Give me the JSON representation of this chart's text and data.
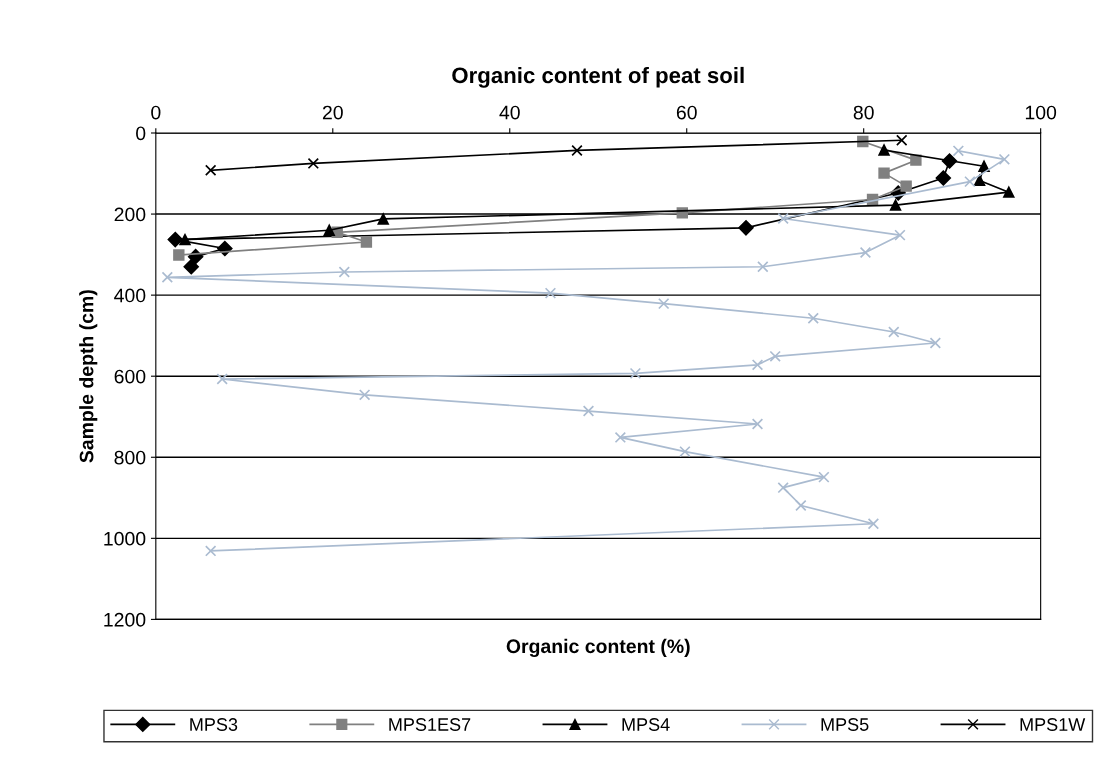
{
  "chart_data": {
    "type": "line",
    "title": "Organic content of peat soil",
    "xlabel": "Organic content (%)",
    "ylabel": "Sample depth (cm)",
    "xlim": [
      0,
      100
    ],
    "xticks": [
      0,
      20,
      40,
      60,
      80,
      100
    ],
    "ylim": [
      1200,
      0
    ],
    "yticks": [
      0,
      200,
      400,
      600,
      800,
      1000,
      1200
    ],
    "grid": "y",
    "legend": "bottom",
    "line_style": "solid",
    "series": [
      {
        "name": "MPS3",
        "color": "#000000",
        "marker": "diamond",
        "x": [
          89.7,
          89.0,
          83.9,
          66.7,
          2.2,
          7.8,
          4.5,
          4.0
        ],
        "values": [
          69,
          111,
          148,
          234,
          263,
          285,
          305,
          330
        ]
      },
      {
        "name": "MPS1ES7",
        "color": "#808080",
        "marker": "square",
        "x": [
          79.9,
          85.9,
          82.3,
          84.8,
          81.0,
          59.5,
          20.5,
          23.8,
          2.6
        ],
        "values": [
          21,
          67,
          99,
          131,
          164,
          197,
          245,
          269,
          301
        ]
      },
      {
        "name": "MPS4",
        "color": "#000000",
        "marker": "triangle",
        "x": [
          82.3,
          93.6,
          93.1,
          96.4,
          83.6,
          25.7,
          19.6,
          3.3
        ],
        "values": [
          42,
          82,
          117,
          146,
          178,
          212,
          240,
          263
        ]
      },
      {
        "name": "MPS5",
        "color": "#aabbd0",
        "marker": "cross",
        "x": [
          90.7,
          95.9,
          92.0,
          70.9,
          84.1,
          80.2,
          68.6,
          21.3,
          1.3,
          44.6,
          57.4,
          74.3,
          83.4,
          88.1,
          70.0,
          68.0,
          54.2,
          7.5,
          23.6,
          48.9,
          68.0,
          52.5,
          59.8,
          75.5,
          70.9,
          72.9,
          81.1,
          6.2
        ],
        "values": [
          44,
          65,
          120,
          211,
          252,
          295,
          330,
          343,
          356,
          395,
          421,
          457,
          491,
          518,
          551,
          572,
          593,
          607,
          646,
          686,
          718,
          751,
          786,
          849,
          875,
          919,
          964,
          1031
        ]
      },
      {
        "name": "MPS1W",
        "color": "#000000",
        "marker": "cross",
        "x": [
          6.2,
          17.8,
          47.6,
          84.3
        ],
        "values": [
          92,
          75,
          43,
          18
        ]
      }
    ]
  }
}
